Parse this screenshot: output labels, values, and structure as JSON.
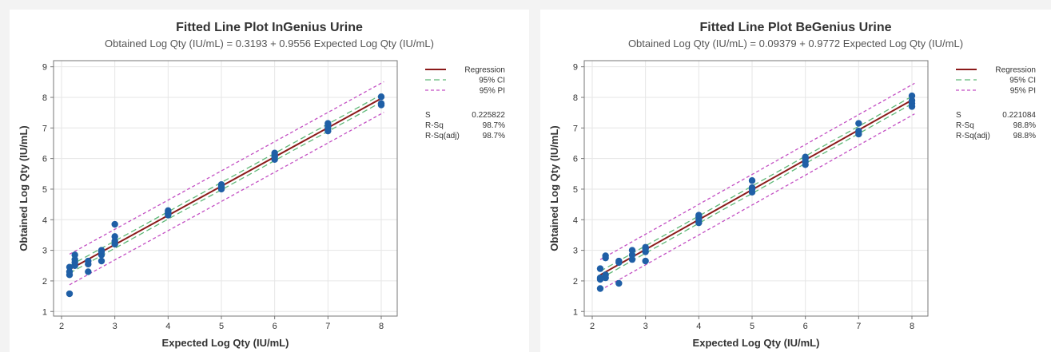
{
  "chart_data": [
    {
      "type": "scatter",
      "title": "Fitted Line Plot InGenius Urine",
      "subtitle": "Obtained Log Qty (IU/mL) = 0.3193 + 0.9556 Expected Log Qty (IU/mL)",
      "xlabel": "Expected Log Qty (IU/mL)",
      "ylabel": "Obtained Log Qty (IU/mL)",
      "xlim": [
        1.85,
        8.3
      ],
      "ylim": [
        0.85,
        9.2
      ],
      "xticks": [
        2,
        3,
        4,
        5,
        6,
        7,
        8
      ],
      "yticks": [
        1,
        2,
        3,
        4,
        5,
        6,
        7,
        8,
        9
      ],
      "regression": {
        "intercept": 0.3193,
        "slope": 0.9556
      },
      "ci_halfwidth": 0.12,
      "pi_halfwidth": 0.5,
      "legend": [
        "Regression",
        "95% CI",
        "95% PI"
      ],
      "legend_position": "top-right",
      "stats": [
        {
          "label": "S",
          "value": "0.225822"
        },
        {
          "label": "R-Sq",
          "value": "98.7%"
        },
        {
          "label": "R-Sq(adj)",
          "value": "98.7%"
        }
      ],
      "points": [
        [
          2.15,
          1.58
        ],
        [
          2.15,
          2.2
        ],
        [
          2.15,
          2.3
        ],
        [
          2.15,
          2.45
        ],
        [
          2.25,
          2.5
        ],
        [
          2.25,
          2.6
        ],
        [
          2.25,
          2.7
        ],
        [
          2.25,
          2.85
        ],
        [
          2.5,
          2.3
        ],
        [
          2.5,
          2.55
        ],
        [
          2.5,
          2.65
        ],
        [
          2.75,
          2.65
        ],
        [
          2.75,
          2.85
        ],
        [
          2.75,
          2.95
        ],
        [
          2.75,
          3.0
        ],
        [
          3,
          3.2
        ],
        [
          3,
          3.3
        ],
        [
          3,
          3.45
        ],
        [
          3,
          3.85
        ],
        [
          4,
          4.15
        ],
        [
          4,
          4.2
        ],
        [
          4,
          4.25
        ],
        [
          4,
          4.3
        ],
        [
          5,
          5.0
        ],
        [
          5,
          5.05
        ],
        [
          5,
          5.1
        ],
        [
          5,
          5.15
        ],
        [
          6,
          5.97
        ],
        [
          6,
          6.05
        ],
        [
          6,
          6.1
        ],
        [
          6,
          6.18
        ],
        [
          7,
          6.9
        ],
        [
          7,
          7.0
        ],
        [
          7,
          7.08
        ],
        [
          7,
          7.15
        ],
        [
          8,
          7.75
        ],
        [
          8,
          7.8
        ],
        [
          8,
          8.02
        ]
      ]
    },
    {
      "type": "scatter",
      "title": "Fitted Line Plot BeGenius Urine",
      "subtitle": "Obtained Log Qty (IU/mL) = 0.09379 + 0.9772 Expected Log Qty (IU/mL)",
      "xlabel": "Expected Log Qty (IU/mL)",
      "ylabel": "Obtained Log Qty (IU/mL)",
      "xlim": [
        1.85,
        8.3
      ],
      "ylim": [
        0.85,
        9.2
      ],
      "xticks": [
        2,
        3,
        4,
        5,
        6,
        7,
        8
      ],
      "yticks": [
        1,
        2,
        3,
        4,
        5,
        6,
        7,
        8,
        9
      ],
      "regression": {
        "intercept": 0.09379,
        "slope": 0.9772
      },
      "ci_halfwidth": 0.12,
      "pi_halfwidth": 0.5,
      "legend": [
        "Regression",
        "95% CI",
        "95% PI"
      ],
      "legend_position": "top-right",
      "stats": [
        {
          "label": "S",
          "value": "0.221084"
        },
        {
          "label": "R-Sq",
          "value": "98.8%"
        },
        {
          "label": "R-Sq(adj)",
          "value": "98.8%"
        }
      ],
      "points": [
        [
          2.15,
          1.75
        ],
        [
          2.15,
          2.05
        ],
        [
          2.15,
          2.1
        ],
        [
          2.15,
          2.4
        ],
        [
          2.25,
          2.1
        ],
        [
          2.25,
          2.2
        ],
        [
          2.25,
          2.75
        ],
        [
          2.25,
          2.82
        ],
        [
          2.5,
          1.92
        ],
        [
          2.5,
          2.6
        ],
        [
          2.5,
          2.65
        ],
        [
          2.75,
          2.7
        ],
        [
          2.75,
          2.85
        ],
        [
          2.75,
          3.0
        ],
        [
          3,
          2.65
        ],
        [
          3,
          2.95
        ],
        [
          3,
          3.05
        ],
        [
          3,
          3.1
        ],
        [
          4,
          3.9
        ],
        [
          4,
          4.0
        ],
        [
          4,
          4.1
        ],
        [
          4,
          4.15
        ],
        [
          5,
          4.9
        ],
        [
          5,
          5.0
        ],
        [
          5,
          5.05
        ],
        [
          5,
          5.28
        ],
        [
          6,
          5.8
        ],
        [
          6,
          5.9
        ],
        [
          6,
          6.0
        ],
        [
          6,
          6.05
        ],
        [
          7,
          6.8
        ],
        [
          7,
          6.9
        ],
        [
          7,
          7.15
        ],
        [
          8,
          7.7
        ],
        [
          8,
          7.8
        ],
        [
          8,
          7.9
        ],
        [
          8,
          8.05
        ]
      ]
    }
  ],
  "colors": {
    "regression": "#8b1a1a",
    "ci": "#5fb878",
    "pi": "#c34fc3",
    "points": "#1f5fa6",
    "grid": "#e6e6e6",
    "axis": "#777777"
  }
}
